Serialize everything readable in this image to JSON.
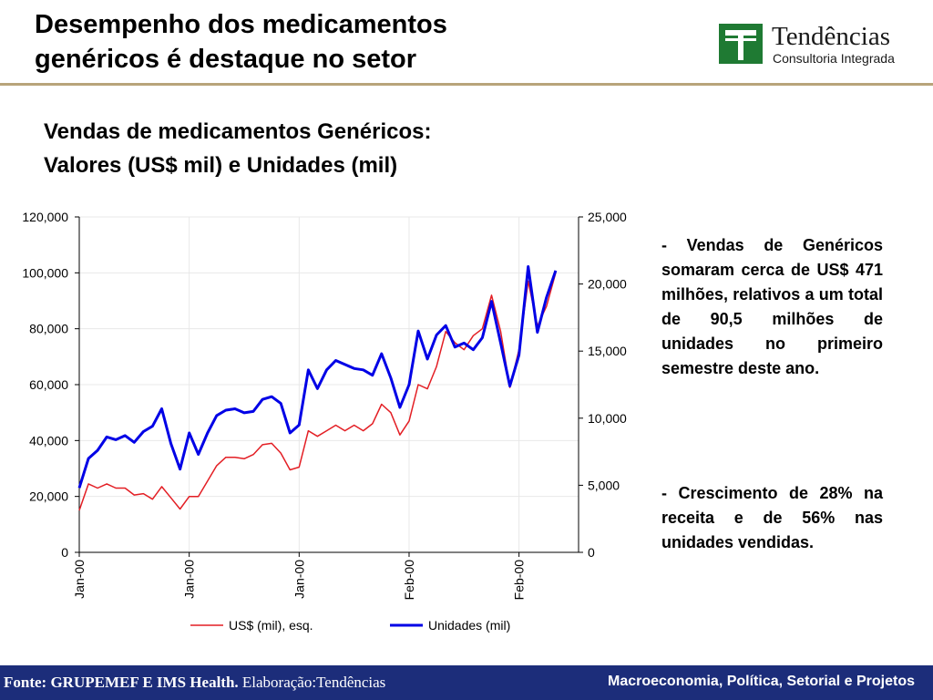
{
  "slide": {
    "title_line1": "Desempenho dos medicamentos",
    "title_line2": "genéricos é destaque no setor",
    "logo_name": "Tendências",
    "logo_sub": "Consultoria Integrada",
    "chart_title_line1": "Vendas de medicamentos Genéricos:",
    "chart_title_line2": "Valores (US$ mil) e Unidades (mil)",
    "note1": "- Vendas de Genéricos somaram cerca de US$ 471 milhões, relativos a um total de 90,5 milhões de unidades no primeiro semestre deste ano.",
    "note2": "- Crescimento de 28% na receita  e de 56% nas unidades vendidas.",
    "footer_source_bold": "Fonte: GRUPEMEF E IMS Health.",
    "footer_source_rest": " Elaboração:Tendências",
    "footer_right": "Macroeconomia, Política, Setorial e Projetos",
    "colors": {
      "accent_rule": "#b8a47a",
      "footer_bg": "#1c2d7a",
      "logo_green": "#1f7a33"
    }
  },
  "chart_data": {
    "type": "line",
    "x_tick_labels": [
      "Jan-00",
      "Jan-00",
      "Jan-00",
      "Feb-00",
      "Feb-00"
    ],
    "x_tick_index": [
      0,
      12,
      24,
      36,
      48
    ],
    "y_left": {
      "ticks": [
        "0",
        "20,000",
        "40,000",
        "60,000",
        "80,000",
        "100,000",
        "120,000"
      ],
      "min": 0,
      "max": 120000
    },
    "y_right": {
      "ticks": [
        "0",
        "5,000",
        "10,000",
        "15,000",
        "20,000",
        "25,000"
      ],
      "min": 0,
      "max": 25000
    },
    "grid": true,
    "legend_position": "bottom",
    "series": [
      {
        "name": "US$ (mil), esq.",
        "axis": "left",
        "color": "#e31e24",
        "values": [
          15000,
          24500,
          23000,
          24500,
          23000,
          23000,
          20500,
          21000,
          19000,
          23500,
          19500,
          15500,
          20000,
          20000,
          25500,
          31000,
          34000,
          34000,
          33500,
          35000,
          38500,
          39000,
          35500,
          29500,
          30500,
          43500,
          41500,
          43500,
          45500,
          43500,
          45500,
          43500,
          46000,
          53000,
          50000,
          42000,
          47000,
          60000,
          58500,
          66500,
          79000,
          75000,
          72500,
          77500,
          80000,
          92000,
          79000,
          59000,
          72500,
          97000,
          81000,
          88000,
          100000
        ]
      },
      {
        "name": "Unidades (mil)",
        "axis": "right",
        "color": "#0000e6",
        "values": [
          4800,
          7000,
          7600,
          8600,
          8400,
          8700,
          8200,
          9000,
          9400,
          10700,
          8100,
          6200,
          8900,
          7300,
          8900,
          10200,
          10600,
          10700,
          10400,
          10500,
          11400,
          11600,
          11100,
          8900,
          9500,
          13600,
          12200,
          13600,
          14300,
          14000,
          13700,
          13600,
          13200,
          14800,
          13000,
          10800,
          12500,
          16500,
          14400,
          16200,
          16900,
          15300,
          15600,
          15100,
          16000,
          18700,
          15600,
          12400,
          14700,
          21300,
          16400,
          19000,
          21000
        ]
      }
    ]
  }
}
